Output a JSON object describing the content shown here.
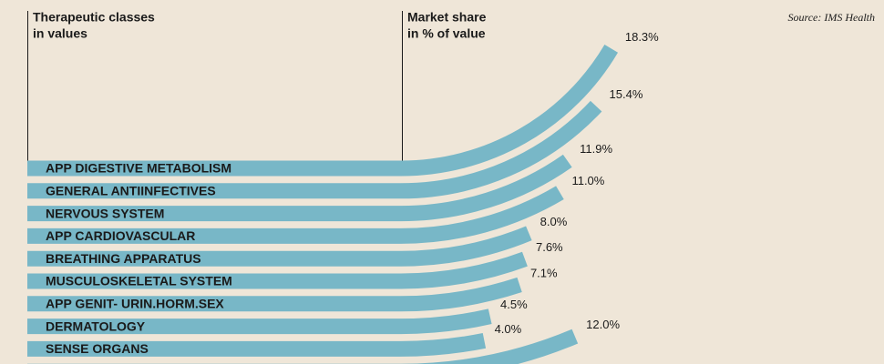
{
  "chart_data": {
    "type": "curved-bar",
    "category_header": [
      "Therapeutic classes",
      "in values"
    ],
    "value_header": [
      "Market share",
      "in % of value"
    ],
    "source": "Source: IMS Health",
    "categories": [
      "APP DIGESTIVE METABOLISM",
      "GENERAL ANTIINFECTIVES",
      "NERVOUS SYSTEM",
      "APP CARDIOVASCULAR",
      "BREATHING APPARATUS",
      "MUSCULOSKELETAL SYSTEM",
      "APP GENIT- URIN.HORM.SEX",
      "DERMATOLOGY",
      "SENSE ORGANS",
      null
    ],
    "values": [
      18.3,
      15.4,
      11.9,
      11.0,
      8.0,
      7.6,
      7.1,
      4.5,
      4.0,
      12.0
    ],
    "value_labels": [
      "18.3%",
      "15.4%",
      "11.9%",
      "11.0%",
      "8.0%",
      "7.6%",
      "7.1%",
      "4.5%",
      "4.0%",
      "12.0%"
    ],
    "color": "#78b7c7"
  }
}
